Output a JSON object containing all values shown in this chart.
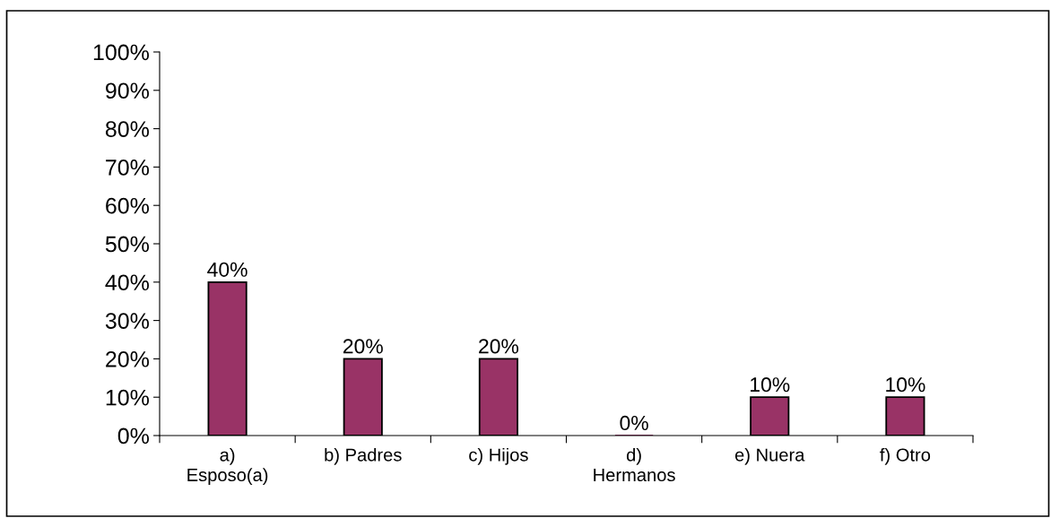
{
  "chart_data": {
    "type": "bar",
    "categories": [
      "a) Esposo(a)",
      "b) Padres",
      "c) Hijos",
      "d) Hermanos",
      "e) Nuera",
      "f) Otro"
    ],
    "values": [
      40,
      20,
      20,
      0,
      10,
      10
    ],
    "value_labels": [
      "40%",
      "20%",
      "20%",
      "0%",
      "10%",
      "10%"
    ],
    "color": "#993366",
    "ylim": [
      0,
      100
    ],
    "yticks": [
      {
        "value": 0,
        "label": "0%"
      },
      {
        "value": 10,
        "label": "10%"
      },
      {
        "value": 20,
        "label": "20%"
      },
      {
        "value": 30,
        "label": "30%"
      },
      {
        "value": 40,
        "label": "40%"
      },
      {
        "value": 50,
        "label": "50%"
      },
      {
        "value": 60,
        "label": "60%"
      },
      {
        "value": 70,
        "label": "70%"
      },
      {
        "value": 80,
        "label": "80%"
      },
      {
        "value": 90,
        "label": "90%"
      },
      {
        "value": 100,
        "label": "100%"
      }
    ],
    "grid": false,
    "legend": false
  }
}
